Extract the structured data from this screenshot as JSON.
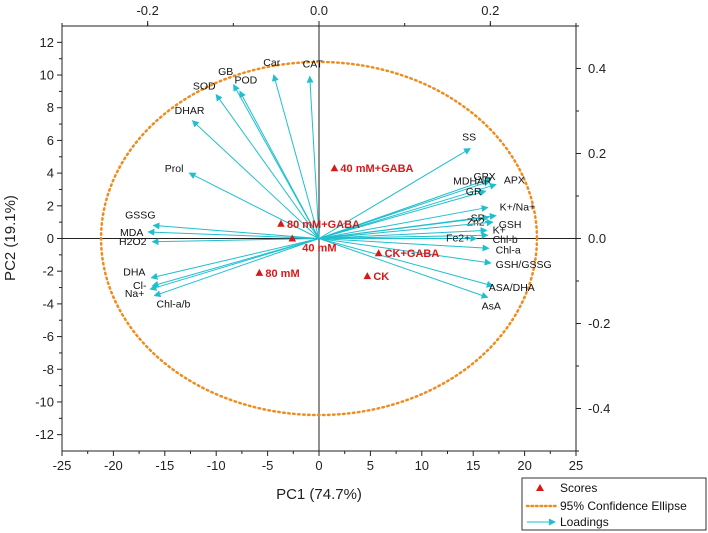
{
  "chart_data": {
    "type": "biplot",
    "xlabel": "PC1 (74.7%)",
    "ylabel": "PC2 (19.1%)",
    "xlim": [
      -25,
      25
    ],
    "ylim": [
      -13,
      13
    ],
    "x_ticks": [
      -25,
      -20,
      -15,
      -10,
      -5,
      0,
      5,
      10,
      15,
      20,
      25
    ],
    "y_ticks": [
      -12,
      -10,
      -8,
      -6,
      -4,
      -2,
      0,
      2,
      4,
      6,
      8,
      10,
      12
    ],
    "top_xlim": [
      -0.3,
      0.3
    ],
    "top_x_ticks": [
      "-0.2",
      "0.0",
      "0.2"
    ],
    "top_x_tick_values": [
      -0.2,
      0.0,
      0.2
    ],
    "right_ylim": [
      -0.5,
      0.5
    ],
    "right_y_ticks": [
      "0.4",
      "0.2",
      "0.0",
      "-0.2",
      "-0.4"
    ],
    "right_y_tick_values": [
      0.4,
      0.2,
      0.0,
      -0.2,
      -0.4
    ],
    "colors": {
      "scores": "#d81818",
      "ellipse": "#f08c1e",
      "loadings": "#1fbfcf",
      "axes": "#222222"
    },
    "ellipse": {
      "cx": 0,
      "cy": 0,
      "rx": 21.2,
      "ry": 10.8
    },
    "scores": [
      {
        "label": "40 mM+GABA",
        "x": 1.5,
        "y": 4.3
      },
      {
        "label": "80 mM+GABA",
        "x": -3.7,
        "y": 0.9
      },
      {
        "label": "40 mM",
        "x": -2.6,
        "y": 0.0
      },
      {
        "label": "CK+GABA",
        "x": 5.8,
        "y": -0.9
      },
      {
        "label": "80 mM",
        "x": -5.8,
        "y": -2.1
      },
      {
        "label": "CK",
        "x": 4.7,
        "y": -2.3
      }
    ],
    "loadings": [
      {
        "label": "CAT",
        "x": -0.9,
        "y": 9.9
      },
      {
        "label": "Car",
        "x": -4.4,
        "y": 10.0
      },
      {
        "label": "POD",
        "x": -7.7,
        "y": 9.0
      },
      {
        "label": "GB",
        "x": -8.3,
        "y": 9.4
      },
      {
        "label": "SOD",
        "x": -10.0,
        "y": 8.8
      },
      {
        "label": "DHAR",
        "x": -12.3,
        "y": 7.2
      },
      {
        "label": "Prol",
        "x": -12.6,
        "y": 4.0
      },
      {
        "label": "GSSG",
        "x": -16.1,
        "y": 0.8
      },
      {
        "label": "MDA",
        "x": -16.6,
        "y": 0.4
      },
      {
        "label": "H2O2",
        "x": -16.2,
        "y": -0.2
      },
      {
        "label": "DHA",
        "x": -16.3,
        "y": -2.4
      },
      {
        "label": "Cl-",
        "x": -16.2,
        "y": -2.9
      },
      {
        "label": "Na+",
        "x": -16.4,
        "y": -3.1
      },
      {
        "label": "Chl-a/b",
        "x": -16.0,
        "y": -3.5
      },
      {
        "label": "SS",
        "x": 14.7,
        "y": 5.5
      },
      {
        "label": "GPX",
        "x": 16.8,
        "y": 3.7
      },
      {
        "label": "MDHAR",
        "x": 16.6,
        "y": 3.5
      },
      {
        "label": "APX",
        "x": 17.2,
        "y": 3.3
      },
      {
        "label": "GR",
        "x": 16.2,
        "y": 2.9
      },
      {
        "label": "SP",
        "x": 16.5,
        "y": 1.3
      },
      {
        "label": "Zn2+",
        "x": 17.2,
        "y": 1.4
      },
      {
        "label": "K+/Na+",
        "x": 16.4,
        "y": 1.9
      },
      {
        "label": "GSH",
        "x": 16.9,
        "y": 1.0
      },
      {
        "label": "K+",
        "x": 16.3,
        "y": 0.5
      },
      {
        "label": "Chl-b",
        "x": 16.4,
        "y": 0.2
      },
      {
        "label": "Fe2+",
        "x": 15.3,
        "y": 0.0
      },
      {
        "label": "Chl-a",
        "x": 16.5,
        "y": -0.6
      },
      {
        "label": "GSH/GSSG",
        "x": 16.7,
        "y": -1.5
      },
      {
        "label": "ASA/DHA",
        "x": 16.9,
        "y": -2.9
      },
      {
        "label": "AsA",
        "x": 16.4,
        "y": -3.6
      }
    ],
    "legend": {
      "position": "bottom-right",
      "entries": [
        "Scores",
        "95% Confidence Ellipse",
        "Loadings"
      ]
    }
  }
}
